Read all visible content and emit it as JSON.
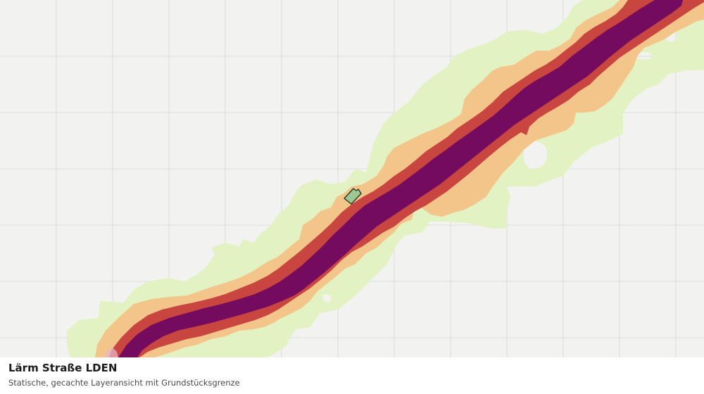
{
  "map": {
    "layer_title": "Lärm Straße LDEN",
    "layer_subtitle": "Statische, gecachte Layeransicht mit Grundstücksgrenze",
    "background_color": "#f2f3f1",
    "grid_color": "#dfe1de",
    "noise_bands": [
      {
        "name": "noise-band-outer",
        "color": "#e3f2c2"
      },
      {
        "name": "noise-band-mid",
        "color": "#f4c58a"
      },
      {
        "name": "noise-band-high",
        "color": "#c9453f"
      },
      {
        "name": "noise-band-highest",
        "color": "#740b5e"
      }
    ],
    "parcel": {
      "fill": "#9dc793",
      "stroke": "#1e2d1e"
    }
  }
}
